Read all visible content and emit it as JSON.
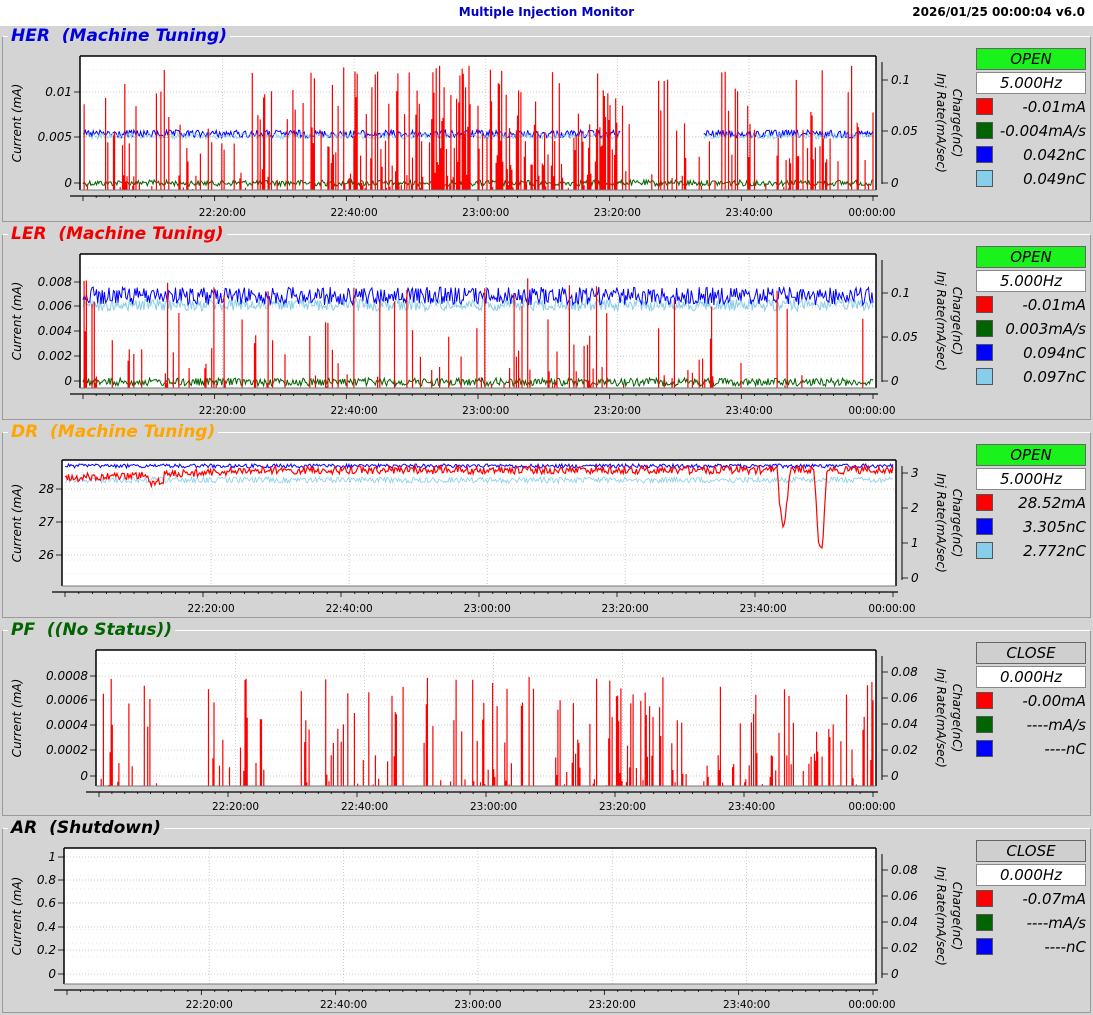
{
  "header": {
    "title": "Multiple Injection Monitor",
    "timestamp": "2026/01/25 00:00:04   v6.0"
  },
  "time_ticks": [
    "22:20:00",
    "22:40:00",
    "23:00:00",
    "23:20:00",
    "23:40:00",
    "00:00:00"
  ],
  "left_axis_label": "Current (mA)",
  "right_axis_label_1": "Charge(nC)",
  "right_axis_label_2": "Inj Rate(mA/sec)",
  "colors": {
    "red": "#ff0000",
    "green": "#006400",
    "blue": "#0000ff",
    "lightblue": "#87ceeb",
    "open": "#19f31b",
    "close": "#cfcfcf"
  },
  "panels": [
    {
      "name": "HER",
      "title": "HER  (Machine Tuning)",
      "title_color": "#0000e0",
      "status": "OPEN",
      "freq": "5.000Hz",
      "left_ticks": [
        "0.01",
        "0.005",
        "0"
      ],
      "right_ticks": [
        "0.1",
        "0.05",
        "0"
      ],
      "legend": [
        {
          "color": "#ff0000",
          "value": "-0.01mA"
        },
        {
          "color": "#006400",
          "value": "-0.004mA/s"
        },
        {
          "color": "#0000ff",
          "value": "0.042nC"
        },
        {
          "color": "#87ceeb",
          "value": "0.049nC"
        }
      ]
    },
    {
      "name": "LER",
      "title": "LER  (Machine Tuning)",
      "title_color": "#f00000",
      "status": "OPEN",
      "freq": "5.000Hz",
      "left_ticks": [
        "0.008",
        "0.006",
        "0.004",
        "0.002",
        "0"
      ],
      "right_ticks": [
        "0.1",
        "0.05",
        "0"
      ],
      "legend": [
        {
          "color": "#ff0000",
          "value": "-0.01mA"
        },
        {
          "color": "#006400",
          "value": "0.003mA/s"
        },
        {
          "color": "#0000ff",
          "value": "0.094nC"
        },
        {
          "color": "#87ceeb",
          "value": "0.097nC"
        }
      ]
    },
    {
      "name": "DR",
      "title": "DR  (Machine Tuning)",
      "title_color": "#ffa500",
      "status": "OPEN",
      "freq": "5.000Hz",
      "left_ticks": [
        "28",
        "27",
        "26"
      ],
      "right_ticks": [
        "3",
        "2",
        "1",
        "0"
      ],
      "legend": [
        {
          "color": "#ff0000",
          "value": "28.52mA"
        },
        {
          "color": "#0000ff",
          "value": "3.305nC"
        },
        {
          "color": "#87ceeb",
          "value": "2.772nC"
        }
      ]
    },
    {
      "name": "PF",
      "title": "PF  ((No Status))",
      "title_color": "#006400",
      "status": "CLOSE",
      "freq": "0.000Hz",
      "left_ticks": [
        "0.0008",
        "0.0006",
        "0.0004",
        "0.0002",
        "0"
      ],
      "right_ticks": [
        "0.08",
        "0.06",
        "0.04",
        "0.02",
        "0"
      ],
      "legend": [
        {
          "color": "#ff0000",
          "value": "-0.00mA"
        },
        {
          "color": "#006400",
          "value": "----mA/s"
        },
        {
          "color": "#0000ff",
          "value": "----nC"
        }
      ]
    },
    {
      "name": "AR",
      "title": "AR  (Shutdown)",
      "title_color": "#000000",
      "status": "CLOSE",
      "freq": "0.000Hz",
      "left_ticks": [
        "1",
        "0.8",
        "0.6",
        "0.4",
        "0.2",
        "0"
      ],
      "right_ticks": [
        "0.08",
        "0.06",
        "0.04",
        "0.02",
        "0"
      ],
      "legend": [
        {
          "color": "#ff0000",
          "value": "-0.07mA"
        },
        {
          "color": "#006400",
          "value": "----mA/s"
        },
        {
          "color": "#0000ff",
          "value": "----nC"
        }
      ]
    }
  ]
}
